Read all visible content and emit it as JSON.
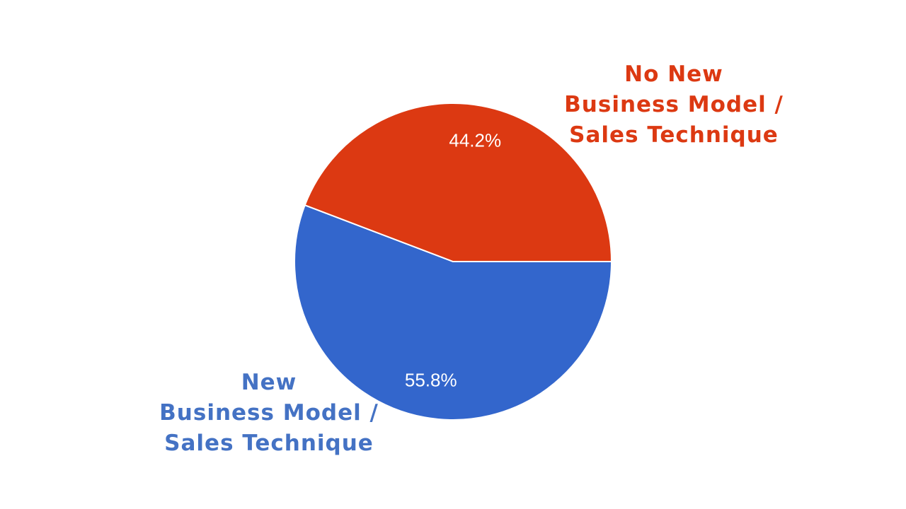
{
  "chart_data": {
    "type": "pie",
    "categories": [
      "New\nBusiness Model /\nSales Technique",
      "No New\nBusiness Model /\nSales Technique"
    ],
    "values": [
      55.8,
      44.2
    ],
    "value_labels": [
      "55.8%",
      "44.2%"
    ],
    "colors": [
      "#3366cc",
      "#dc3912"
    ]
  }
}
